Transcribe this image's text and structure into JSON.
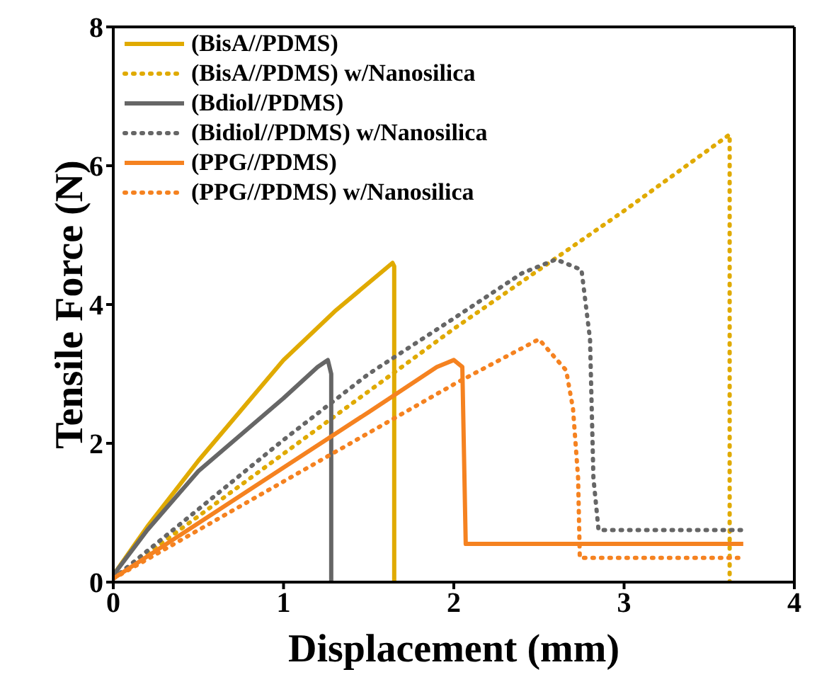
{
  "chart_data": {
    "type": "line",
    "xlabel": "Displacement (mm)",
    "ylabel": "Tensile Force (N)",
    "xlim": [
      0,
      4
    ],
    "xticks": [
      0,
      1,
      2,
      3,
      4
    ],
    "ylim": [
      0,
      8
    ],
    "yticks": [
      0,
      2,
      4,
      6,
      8
    ],
    "legend": "top left",
    "marker": "none",
    "series": [
      {
        "name": "(BisA//PDMS)",
        "color": "#e0aa00",
        "line_style": "solid",
        "x": [
          0,
          0.2,
          0.5,
          1.0,
          1.3,
          1.64,
          1.65,
          1.65
        ],
        "values": [
          0.1,
          0.8,
          1.75,
          3.2,
          3.9,
          4.6,
          4.55,
          0
        ]
      },
      {
        "name": "(BisA//PDMS) w/Nanosilica",
        "color": "#e0aa00",
        "line_style": "dotted",
        "x": [
          0,
          1,
          2,
          3,
          3.62,
          3.62
        ],
        "values": [
          0.05,
          1.85,
          3.65,
          5.35,
          6.45,
          0
        ]
      },
      {
        "name": "(Bdiol//PDMS)",
        "color": "#666666",
        "line_style": "solid",
        "x": [
          0,
          0.2,
          0.5,
          1.0,
          1.2,
          1.26,
          1.28,
          1.28
        ],
        "values": [
          0.1,
          0.75,
          1.6,
          2.65,
          3.1,
          3.2,
          3.0,
          0
        ]
      },
      {
        "name": "(Bidiol//PDMS) w/Nanosilica",
        "color": "#666666",
        "line_style": "dotted",
        "x": [
          0,
          1,
          1.5,
          2,
          2.4,
          2.6,
          2.75,
          2.8,
          2.82,
          2.85,
          3.7
        ],
        "values": [
          0.05,
          2.05,
          3.0,
          3.8,
          4.45,
          4.65,
          4.5,
          3.5,
          1.5,
          0.75,
          0.75
        ]
      },
      {
        "name": "(PPG//PDMS)",
        "color": "#f58220",
        "line_style": "solid",
        "x": [
          0,
          0.5,
          1,
          1.5,
          1.9,
          2.0,
          2.05,
          2.07,
          3.7
        ],
        "values": [
          0.05,
          0.85,
          1.65,
          2.45,
          3.1,
          3.2,
          3.1,
          0.55,
          0.55
        ]
      },
      {
        "name": "(PPG//PDMS) w/Nanosilica",
        "color": "#f58220",
        "line_style": "dotted",
        "x": [
          0,
          1,
          2,
          2.5,
          2.66,
          2.7,
          2.73,
          2.74,
          3.7
        ],
        "values": [
          0.05,
          1.45,
          2.85,
          3.5,
          3.05,
          2.5,
          1.5,
          0.35,
          0.35
        ]
      }
    ]
  }
}
